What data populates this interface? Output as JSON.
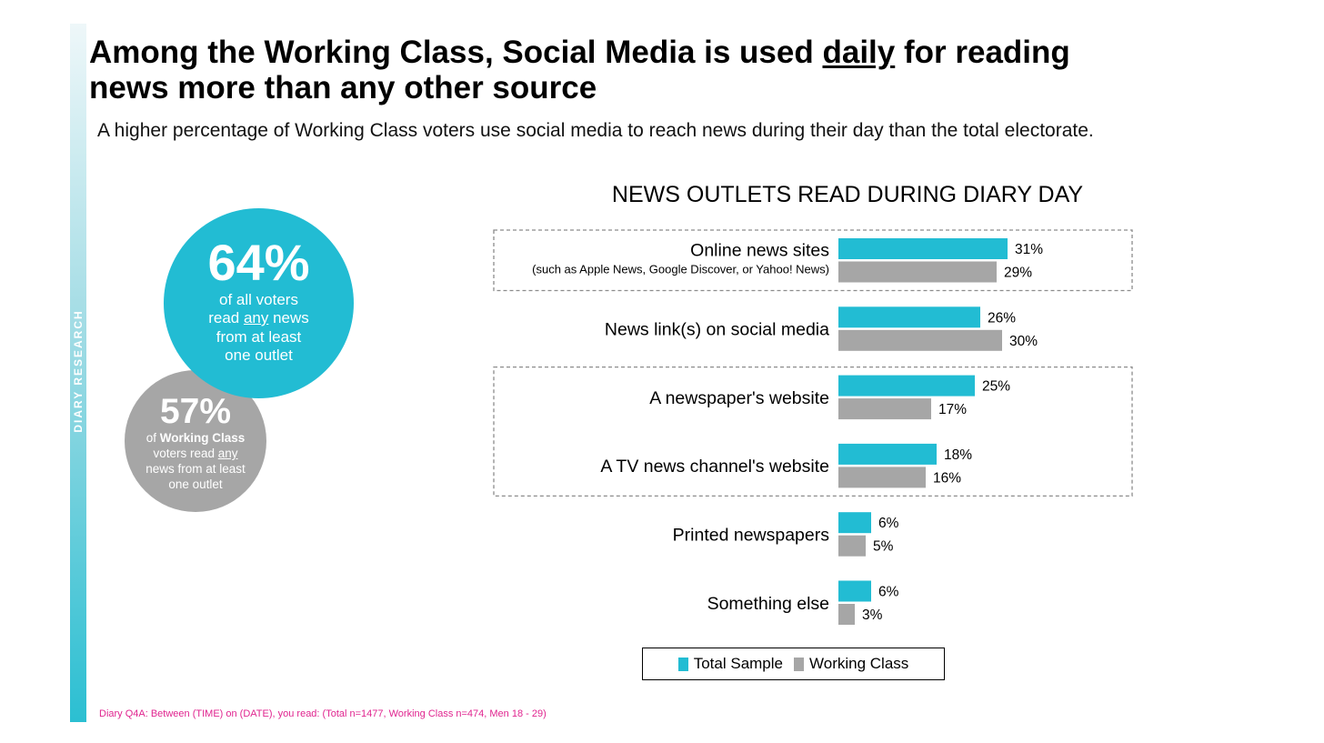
{
  "sidebar": {
    "label": "DIARY RESEARCH"
  },
  "header": {
    "title_part1": "Among the Working Class, Social Media is used ",
    "title_underlined": "daily",
    "title_part2": " for reading news more than any other source",
    "subtitle": "A higher percentage of Working Class voters use social media to reach news during their day than the total electorate."
  },
  "bubbles": {
    "all_voters": {
      "value": "64%",
      "text_line1": "of all voters",
      "text_read": "read ",
      "text_any": "any",
      "text_news": " news",
      "text_line3": "from at least",
      "text_line4": "one outlet"
    },
    "working_class": {
      "value": "57%",
      "text_of": "of ",
      "text_bold": "Working Class",
      "text_voters_read": "voters read ",
      "text_any": "any",
      "text_line3": "news from at least",
      "text_line4": "one outlet"
    }
  },
  "chart_data": {
    "type": "bar",
    "orientation": "horizontal",
    "title": "NEWS OUTLETS READ DURING DIARY DAY",
    "categories": [
      "Online news sites",
      "News link(s) on social media",
      "A newspaper's website",
      "A TV news channel's website",
      "Printed newspapers",
      "Something else"
    ],
    "category_notes": [
      "(such as Apple News, Google Discover, or Yahoo! News)",
      "",
      "",
      "",
      "",
      ""
    ],
    "series": [
      {
        "name": "Total Sample",
        "color": "#22bcd3",
        "values": [
          31,
          26,
          25,
          18,
          6,
          6
        ]
      },
      {
        "name": "Working Class",
        "color": "#a6a6a6",
        "values": [
          29,
          30,
          17,
          16,
          5,
          3
        ]
      }
    ],
    "value_suffix": "%",
    "legend_position": "bottom",
    "highlight_groups": [
      [
        0
      ],
      [
        2,
        3
      ]
    ],
    "grid": false
  },
  "footnote": "Diary Q4A: Between (TIME) on (DATE), you read: (Total n=1477, Working Class n=474, Men 18 - 29)"
}
